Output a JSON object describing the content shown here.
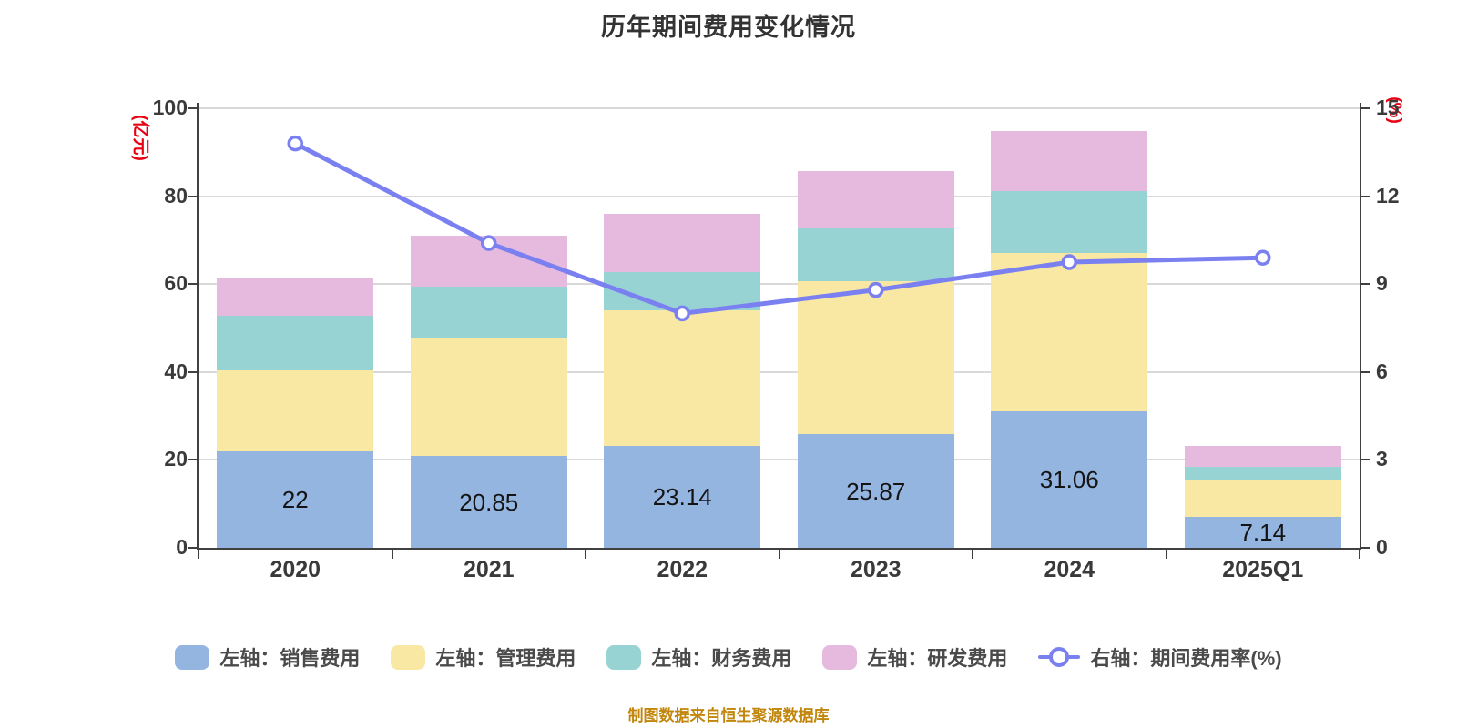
{
  "title": "历年期间费用变化情况",
  "source_note": "制图数据来自恒生聚源数据库",
  "left_axis": {
    "unit_label": "(亿元)",
    "ticks": [
      0,
      20,
      40,
      60,
      80,
      100
    ],
    "max": 100
  },
  "right_axis": {
    "unit_label": "(%)",
    "ticks": [
      0,
      3,
      6,
      9,
      12,
      15
    ],
    "max": 15
  },
  "chart_data": {
    "type": "stacked-bar+line",
    "categories": [
      "2020",
      "2021",
      "2022",
      "2023",
      "2024",
      "2025Q1"
    ],
    "left_range": [
      0,
      100
    ],
    "right_range": [
      0,
      15
    ],
    "grid": true,
    "legend_position": "bottom",
    "series": [
      {
        "key": "sales",
        "name": "左轴：销售费用",
        "chart": "bar",
        "axis": "left",
        "color": "#95b5e1",
        "values": [
          22,
          20.85,
          23.14,
          25.87,
          31.06,
          7.14
        ],
        "data_labels": [
          "22",
          "20.85",
          "23.14",
          "25.87",
          "31.06",
          "7.14"
        ]
      },
      {
        "key": "admin",
        "name": "左轴：管理费用",
        "chart": "bar",
        "axis": "left",
        "color": "#f8e8a4",
        "values": [
          18.3,
          26.9,
          30.9,
          34.7,
          36.1,
          8.3
        ]
      },
      {
        "key": "finance",
        "name": "左轴：财务费用",
        "chart": "bar",
        "axis": "left",
        "color": "#98d3d3",
        "values": [
          12.4,
          11.7,
          8.7,
          12.1,
          14.0,
          2.9
        ]
      },
      {
        "key": "rd",
        "name": "左轴：研发费用",
        "chart": "bar",
        "axis": "left",
        "color": "#e5bade",
        "values": [
          8.8,
          11.6,
          13.2,
          13.0,
          13.7,
          4.8
        ]
      },
      {
        "key": "expense-ratio",
        "name": "右轴：期间费用率(%)",
        "chart": "line",
        "axis": "right",
        "color": "#7b80f0",
        "values": [
          13.8,
          10.4,
          8.0,
          8.8,
          9.75,
          9.9
        ]
      }
    ]
  },
  "colors": {
    "axis": "#404040",
    "grid": "#d9d9d9",
    "title": "#333333",
    "tick_label": "#3a3a3a",
    "unit_label": "#e60012",
    "legend_label": "#4a4a4a",
    "source_note": "#c1860b",
    "bar_label": "#141414",
    "line_marker_fill": "#ffffff"
  }
}
